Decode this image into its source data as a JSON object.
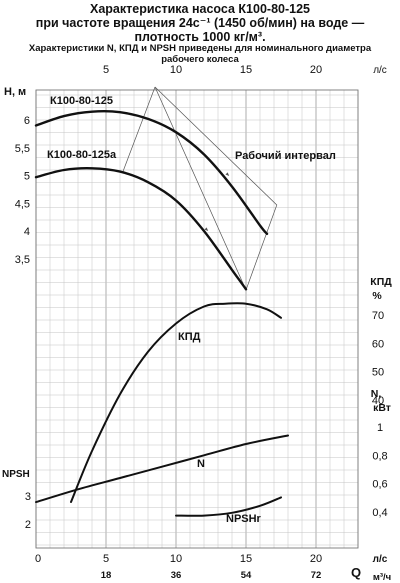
{
  "header": {
    "line1": "Характеристика насоса К100-80-125",
    "line2": "при частоте вращения 24с⁻¹ (1450 об/мин) на воде —",
    "line3": "плотность 1000 кг/м³.",
    "line4": "Характеристики N, КПД и NPSH приведены для номинального диаметра",
    "line5": "рабочего колеса"
  },
  "chart_data": {
    "type": "line",
    "x_axis": {
      "unit": "л/с",
      "ticks": [
        0,
        5,
        10,
        15,
        20
      ],
      "range": [
        0,
        23
      ],
      "grid": true
    },
    "x_axis_secondary": {
      "unit_prefix": "Q",
      "unit": "м³/ч",
      "ticks": [
        18,
        36,
        54,
        72
      ]
    },
    "panels": [
      {
        "name": "H",
        "axis_label": "H, м",
        "ticks": [
          3.5,
          4,
          4.5,
          5,
          5.5,
          6
        ],
        "tick_labels": [
          "3,5",
          "4",
          "4,5",
          "5",
          "5,5",
          "6"
        ],
        "series": [
          {
            "name": "К100-80-125",
            "x": [
              0,
              2,
              4,
              6,
              8,
              10,
              12,
              14,
              16,
              16.5
            ],
            "y": [
              5.9,
              6.07,
              6.15,
              6.14,
              6.02,
              5.78,
              5.38,
              4.8,
              4.1,
              3.95
            ]
          },
          {
            "name": "К100-80-125а",
            "x": [
              0,
              2,
              4,
              6,
              8,
              10,
              12,
              14,
              15
            ],
            "y": [
              4.97,
              5.1,
              5.13,
              5.07,
              4.88,
              4.55,
              4.0,
              3.3,
              2.95
            ]
          }
        ]
      },
      {
        "name": "КПД",
        "axis_label_1": "КПД",
        "axis_label_2": "%",
        "ticks": [
          40,
          50,
          60,
          70
        ],
        "tick_labels": [
          "40",
          "50",
          "60",
          "70"
        ],
        "series": [
          {
            "name": "КПД",
            "x": [
              2.5,
              4,
              6,
              8,
              10,
              12,
              13.5,
              15,
              16.5,
              17.5
            ],
            "y": [
              4,
              22,
              42,
              57,
              67,
              73,
              74,
              74,
              72,
              69
            ]
          }
        ]
      },
      {
        "name": "N",
        "axis_label_1": "N,",
        "axis_label_2": "кВт",
        "ticks": [
          0.4,
          0.6,
          0.8,
          1
        ],
        "tick_labels": [
          "0,4",
          "0,6",
          "0,8",
          "1"
        ],
        "series": [
          {
            "name": "N",
            "x": [
              0,
              3,
              6,
              9,
              12,
              15,
              18
            ],
            "y": [
              0.47,
              0.56,
              0.64,
              0.72,
              0.8,
              0.88,
              0.94
            ]
          }
        ]
      },
      {
        "name": "NPSH",
        "axis_label": "NPSH",
        "ticks": [
          2,
          3
        ],
        "tick_labels": [
          "2",
          "3"
        ],
        "series": [
          {
            "name": "NPSHr",
            "x": [
              10,
              12,
              14,
              16,
              17.5
            ],
            "y": [
              2.3,
              2.3,
              2.4,
              2.65,
              2.95
            ]
          }
        ]
      }
    ],
    "annotations": [
      "Рабочий интервал"
    ]
  }
}
